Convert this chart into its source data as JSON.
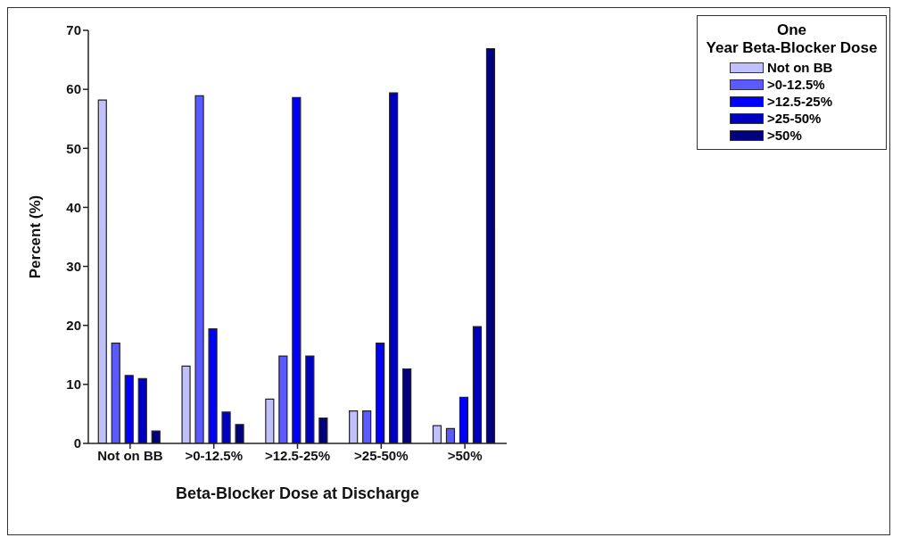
{
  "chart_data": {
    "type": "bar",
    "xlabel": "Beta-Blocker Dose at Discharge",
    "ylabel": "Percent (%)",
    "legend_title": "One Year Beta-Blocker Dose",
    "categories": [
      "Not on BB",
      ">0-12.5%",
      ">12.5-25%",
      ">25-50%",
      ">50%"
    ],
    "series": [
      {
        "name": "Not on BB",
        "color": "#c0c0ff",
        "values": [
          58.2,
          13.1,
          7.5,
          5.5,
          3.0
        ]
      },
      {
        "name": ">0-12.5%",
        "color": "#5a5aff",
        "values": [
          17.0,
          58.9,
          14.8,
          5.5,
          2.5
        ]
      },
      {
        "name": ">12.5-25%",
        "color": "#0000ff",
        "values": [
          11.5,
          19.4,
          58.6,
          17.0,
          7.8
        ]
      },
      {
        "name": ">25-50%",
        "color": "#0000c0",
        "values": [
          11.0,
          5.3,
          14.8,
          59.4,
          19.8
        ]
      },
      {
        "name": ">50%",
        "color": "#000080",
        "values": [
          2.1,
          3.2,
          4.3,
          12.6,
          66.9
        ]
      }
    ],
    "ylim": [
      0,
      70
    ],
    "yticks": [
      0,
      10,
      20,
      30,
      40,
      50,
      60,
      70
    ],
    "grid": false,
    "legend": "top right"
  }
}
